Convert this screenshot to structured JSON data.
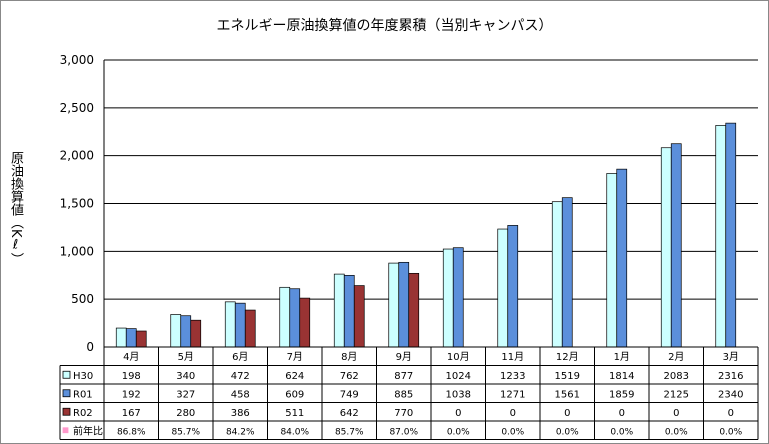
{
  "chart_data": {
    "type": "bar",
    "title": "エネルギー原油換算値の年度累積（当別キャンパス）",
    "ylabel": "原油換算値（Kℓ）",
    "xlabel": "",
    "ylim": [
      0,
      3000
    ],
    "yticks": [
      "0",
      "500",
      "1,000",
      "1,500",
      "2,000",
      "2,500",
      "3,000"
    ],
    "grid": "horizontal",
    "categories": [
      "4月",
      "5月",
      "6月",
      "7月",
      "8月",
      "9月",
      "10月",
      "11月",
      "12月",
      "1月",
      "2月",
      "3月"
    ],
    "series": [
      {
        "name": "H30",
        "values": [
          198,
          340,
          472,
          624,
          762,
          877,
          1024,
          1233,
          1519,
          1814,
          2083,
          2316
        ],
        "color": "#ccffff",
        "marker": "□"
      },
      {
        "name": "R01",
        "values": [
          192,
          327,
          458,
          609,
          749,
          885,
          1038,
          1271,
          1561,
          1859,
          2125,
          2340
        ],
        "color": "#5b8fdb",
        "marker": "■"
      },
      {
        "name": "R02",
        "values": [
          167,
          280,
          386,
          511,
          642,
          770,
          0,
          0,
          0,
          0,
          0,
          0
        ],
        "color": "#993333",
        "marker": "■"
      }
    ],
    "table_rows": [
      {
        "name": "H30",
        "cells": [
          "198",
          "340",
          "472",
          "624",
          "762",
          "877",
          "1024",
          "1233",
          "1519",
          "1814",
          "2083",
          "2316"
        ]
      },
      {
        "name": "R01",
        "cells": [
          "192",
          "327",
          "458",
          "609",
          "749",
          "885",
          "1038",
          "1271",
          "1561",
          "1859",
          "2125",
          "2340"
        ]
      },
      {
        "name": "R02",
        "cells": [
          "167",
          "280",
          "386",
          "511",
          "642",
          "770",
          "0",
          "0",
          "0",
          "0",
          "0",
          "0"
        ]
      },
      {
        "name": "前年比",
        "cells": [
          "86.8%",
          "85.7%",
          "84.2%",
          "84.0%",
          "85.7%",
          "87.0%",
          "0.0%",
          "0.0%",
          "0.0%",
          "0.0%",
          "0.0%",
          "0.0%"
        ],
        "color": "#ff99cc",
        "marker": "▪"
      }
    ]
  }
}
